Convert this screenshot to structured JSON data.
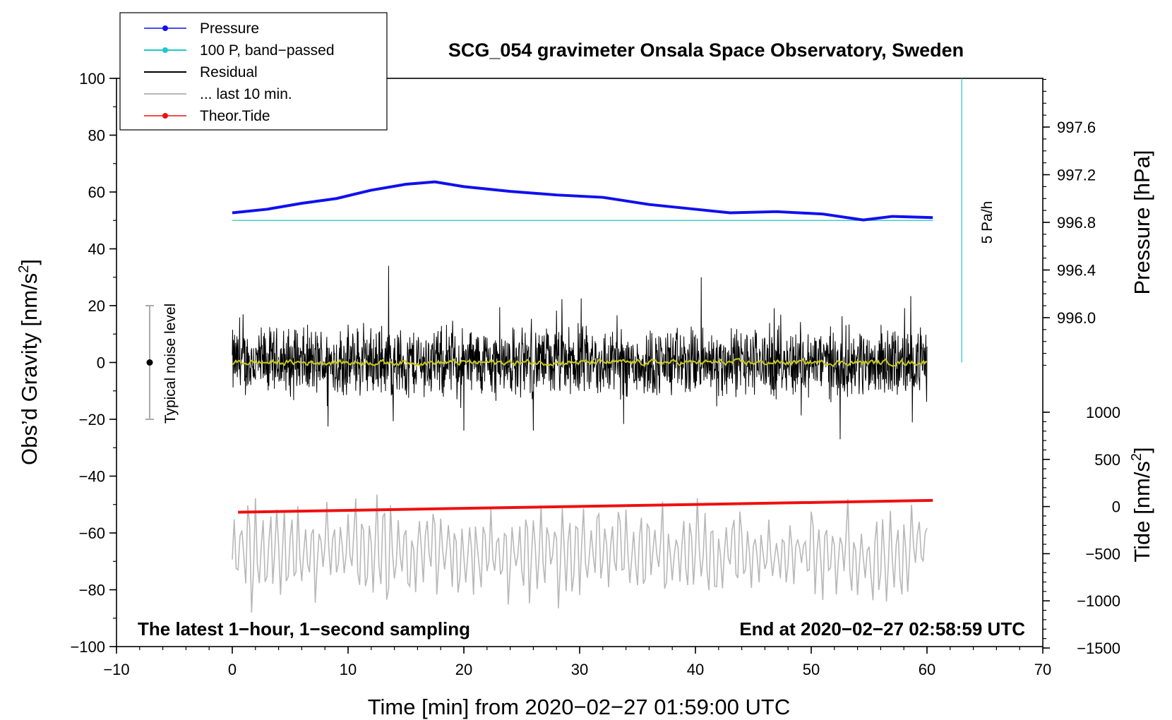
{
  "chart_data": {
    "type": "line",
    "title": "SCG_054 gravimeter Onsala Space Observatory, Sweden",
    "xlabel": "Time [min] from 2020−02−27 01:59:00 UTC",
    "ylabel_left_main": "Obs’d Gravity [nm/s",
    "ylabel_left_sup": "2",
    "ylabel_left_end": "]",
    "ylabel_right_pressure": "Pressure [hPa]",
    "ylabel_right_tide_main": "Tide [nm/s",
    "ylabel_right_tide_sup": "2",
    "ylabel_right_tide_end": "]",
    "xlim": [
      -10,
      70
    ],
    "ylim": [
      -100,
      100
    ],
    "x_ticks": [
      "−10",
      "0",
      "10",
      "20",
      "30",
      "40",
      "50",
      "60",
      "70"
    ],
    "x_tick_values": [
      -10,
      0,
      10,
      20,
      30,
      40,
      50,
      60,
      70
    ],
    "y_ticks": [
      "100",
      "80",
      "60",
      "40",
      "20",
      "0",
      "−20",
      "−40",
      "−60",
      "−80",
      "−100"
    ],
    "y_tick_values": [
      100,
      80,
      60,
      40,
      20,
      0,
      -20,
      -40,
      -60,
      -80,
      -100
    ],
    "pressure_axis": {
      "ticks": [
        "997.6",
        "997.2",
        "996.8",
        "996.4",
        "996.0"
      ],
      "tick_values": [
        997.6,
        997.2,
        996.8,
        996.4,
        996.0
      ],
      "range": [
        995.6,
        998.0
      ]
    },
    "tide_axis": {
      "ticks": [
        "1000",
        "500",
        "0",
        "−500",
        "−1000",
        "−1500"
      ],
      "tick_values": [
        1000,
        500,
        0,
        -500,
        -1000,
        -1500
      ],
      "range": [
        -1500,
        1000
      ]
    },
    "legend": [
      {
        "label": "Pressure",
        "color": "#1010ee",
        "marker": true
      },
      {
        "label": "100 P, band−passed",
        "color": "#20c8c8",
        "marker": true
      },
      {
        "label": "Residual",
        "color": "#000000",
        "marker": false
      },
      {
        "label": "... last 10 min.",
        "color": "#b8b8b8",
        "marker": false
      },
      {
        "label": "Theor.Tide",
        "color": "#ee1010",
        "marker": true
      }
    ],
    "series": [
      {
        "name": "Pressure",
        "axis": "pressure_hPa",
        "color": "#1010ee",
        "x": [
          0,
          3,
          6,
          9,
          12,
          15,
          17.5,
          20,
          24,
          28,
          32,
          36,
          40,
          43,
          47,
          51,
          54.5,
          57,
          60.5
        ],
        "y": [
          996.88,
          996.91,
          996.96,
          997.0,
          997.07,
          997.12,
          997.14,
          997.1,
          997.06,
          997.03,
          997.01,
          996.95,
          996.91,
          996.88,
          996.89,
          996.87,
          996.82,
          996.85,
          996.84
        ]
      },
      {
        "name": "100 P, band−passed",
        "axis": "gravity",
        "color": "#20c8c8",
        "x": [
          0,
          60.5
        ],
        "y": [
          50,
          50
        ]
      },
      {
        "name": "Residual",
        "axis": "gravity",
        "color": "#000000",
        "x_range": [
          0,
          60
        ],
        "amplitude": 10,
        "peaks": [
          {
            "x": 13.5,
            "y": 34
          },
          {
            "x": 40.5,
            "y": 30
          },
          {
            "x": 52.5,
            "y": -27
          },
          {
            "x": 20,
            "y": -24
          },
          {
            "x": 26,
            "y": -24
          }
        ]
      },
      {
        "name": "Residual (smoothed)",
        "axis": "gravity",
        "color": "#c8c820",
        "x_range": [
          0,
          60
        ],
        "amplitude": 1
      },
      {
        "name": "... last 10 min.",
        "axis": "gravity",
        "color": "#b8b8b8",
        "x_range": [
          0,
          60
        ],
        "center": -67,
        "amplitude": 16
      },
      {
        "name": "Theor.Tide",
        "axis": "tide_nm_s2",
        "color": "#ee1010",
        "x": [
          0.5,
          60.5
        ],
        "y": [
          -60,
          65
        ]
      }
    ],
    "annotations": {
      "left_bottom": "The latest 1−hour, 1−second sampling",
      "right_bottom": "End at 2020−02−27 02:58:59 UTC",
      "noise_label": "Typical noise level",
      "noise_range": [
        -20,
        20
      ],
      "scale_label": "5 Pa/h",
      "scale_bar": {
        "x": 63,
        "y_from": 0,
        "y_to": 100
      }
    }
  }
}
